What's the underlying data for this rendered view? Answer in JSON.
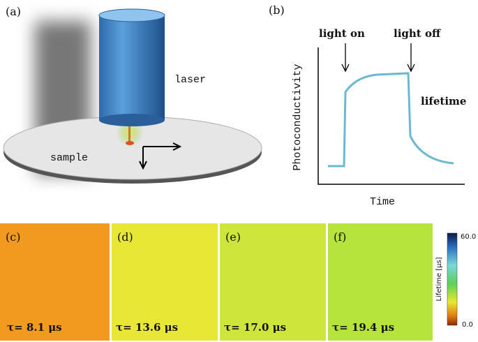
{
  "panel_a": {
    "label": "(a)",
    "laser": "laser",
    "sample": "sample"
  },
  "panel_b": {
    "label": "(b)",
    "light_on": "light on",
    "light_off": "light off",
    "lifetime": "lifetime",
    "y_label": "Photoconductivity",
    "x_label": "Time"
  },
  "maps": [
    {
      "label": "(c)",
      "tau": "τ= 8.1 μs"
    },
    {
      "label": "(d)",
      "tau": "τ= 13.6 μs"
    },
    {
      "label": "(e)",
      "tau": "τ= 17.0 μs"
    },
    {
      "label": "(f)",
      "tau": "τ= 19.4 μs"
    }
  ],
  "colorbar": {
    "title": "Lifetime [μs]",
    "max": "60.0",
    "min": "0.0"
  }
}
